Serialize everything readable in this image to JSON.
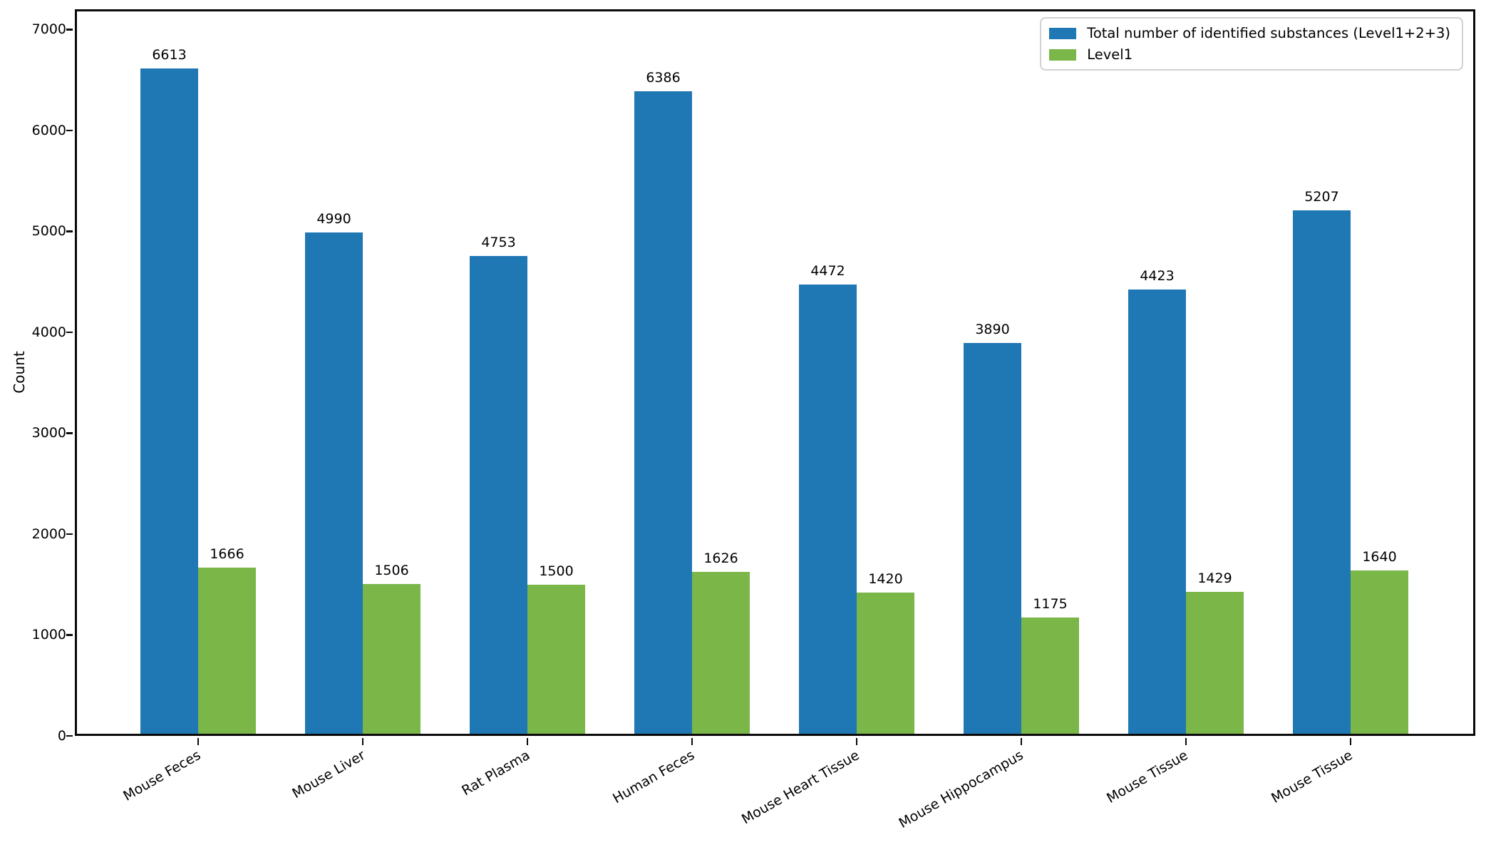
{
  "chart_data": {
    "type": "bar",
    "title": "",
    "xlabel": "",
    "ylabel": "Count",
    "categories": [
      "Mouse Feces",
      "Mouse Liver",
      "Rat Plasma",
      "Human Feces",
      "Mouse Heart Tissue",
      "Mouse Hippocampus",
      "Mouse Tissue",
      "Mouse Tissue"
    ],
    "series": [
      {
        "name": "Total number of identified substances (Level1+2+3)",
        "color": "#1f77b4",
        "values": [
          6613,
          4990,
          4753,
          6386,
          4472,
          3890,
          4423,
          5207
        ]
      },
      {
        "name": "Level1",
        "color": "#7ab648",
        "values": [
          1666,
          1506,
          1500,
          1626,
          1420,
          1175,
          1429,
          1640
        ]
      }
    ],
    "yticks": [
      0,
      1000,
      2000,
      3000,
      4000,
      5000,
      6000,
      7000
    ],
    "ylim": [
      0,
      7200
    ],
    "grid": false,
    "bar_value_labels": true,
    "legend_position": "upper right",
    "xtick_rotation_deg": 30,
    "axis_color": "#0a0a0a",
    "background_color": "#ffffff"
  }
}
